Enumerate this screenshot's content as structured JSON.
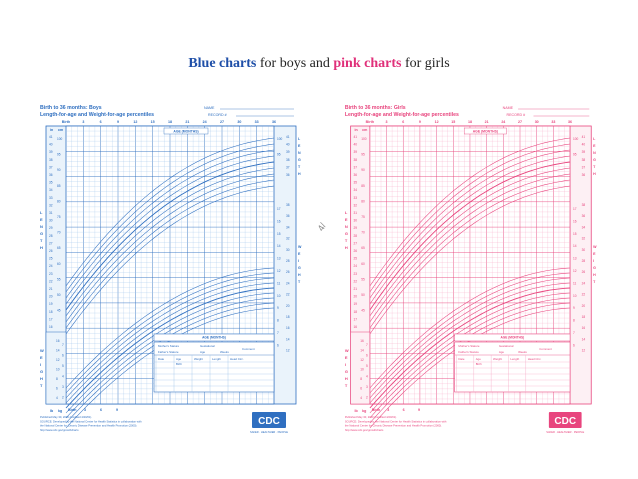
{
  "caption": {
    "blue_label": "Blue charts",
    "middle_text": " for boys and ",
    "pink_label": "pink charts",
    "end_text": " for girls"
  },
  "separator_glyph": "4/",
  "charts": [
    {
      "id": "boys",
      "color": "#2f6fc0",
      "light": "#9cc3ea",
      "paper": "#eaf3fb",
      "title": "Birth to 36 months: Boys",
      "subtitle": "Length-for-age and Weight-for-age percentiles",
      "name_label": "NAME",
      "record_label": "RECORD #",
      "age_top_label": "AGE (MONTHS)",
      "age_bottom_label": "AGE (MONTHS)",
      "age_ticks": [
        "Birth",
        "3",
        "6",
        "9",
        "12",
        "15",
        "18",
        "21",
        "24",
        "27",
        "30",
        "33",
        "36"
      ],
      "age_ticks_bottom": [
        "Birth",
        "3",
        "6",
        "9"
      ],
      "length_letters": [
        "L",
        "E",
        "N",
        "G",
        "T",
        "H"
      ],
      "weight_letters": [
        "W",
        "E",
        "I",
        "G",
        "H",
        "T"
      ],
      "in_label": "in",
      "cm_label": "cm",
      "lb_label": "lb",
      "kg_label": "kg",
      "length_in_ticks": [
        "41",
        "40",
        "39",
        "38",
        "37",
        "36",
        "35",
        "34",
        "33",
        "32",
        "31",
        "30",
        "29",
        "28",
        "27",
        "26",
        "25",
        "24",
        "23",
        "22",
        "21",
        "20",
        "19",
        "18",
        "17",
        "16",
        "15"
      ],
      "length_cm_ticks": [
        "100",
        "95",
        "90",
        "85",
        "80",
        "75",
        "70",
        "65",
        "60",
        "55",
        "50",
        "45"
      ],
      "weight_lb_ticks": [
        "16",
        "14",
        "12",
        "10",
        "8",
        "6",
        "4"
      ],
      "weight_kg_ticks": [
        "7",
        "6",
        "5",
        "4",
        "3",
        "2"
      ],
      "right_weight_kg_ticks": [
        "17",
        "16",
        "15",
        "14",
        "13",
        "12",
        "11",
        "10",
        "9",
        "8",
        "7",
        "6"
      ],
      "right_weight_lb_ticks": [
        "38",
        "36",
        "34",
        "32",
        "30",
        "28",
        "26",
        "24",
        "22",
        "20",
        "18",
        "16",
        "14",
        "12"
      ],
      "right_length_in_ticks": [
        "41",
        "40",
        "39",
        "38",
        "37",
        "36"
      ],
      "right_length_cm_ticks": [
        "100",
        "95"
      ],
      "table_headers": [
        "Mother's Stature",
        "Gestational",
        "Father's Stature",
        "Age",
        "Weeks",
        "Comment"
      ],
      "table_cols": [
        "Date",
        "Age",
        "Weight",
        "Length",
        "Head Circ."
      ],
      "table_birth": "Birth",
      "footer": [
        "Published May 30, 2000 (modified 4/20/01).",
        "SOURCE: Developed by the National Center for Health Statistics in collaboration with",
        "the National Center for Chronic Disease Prevention and Health Promotion (2000).",
        "http://www.cdc.gov/growthcharts"
      ],
      "logo_text": "CDC",
      "logo_sub": "SAFER · HEALTHIER · PEOPLE"
    },
    {
      "id": "girls",
      "color": "#e8457e",
      "light": "#f6a9c6",
      "paper": "#fdf0f4",
      "title": "Birth to 36 months: Girls",
      "subtitle": "Length-for-age and Weight-for-age percentiles",
      "name_label": "NAME",
      "record_label": "RECORD #",
      "age_top_label": "AGE (MONTHS)",
      "age_bottom_label": "AGE (MONTHS)",
      "age_ticks": [
        "Birth",
        "3",
        "6",
        "9",
        "12",
        "15",
        "18",
        "21",
        "24",
        "27",
        "30",
        "33",
        "36"
      ],
      "age_ticks_bottom": [
        "Birth",
        "3",
        "6",
        "9"
      ],
      "length_letters": [
        "L",
        "E",
        "N",
        "G",
        "T",
        "H"
      ],
      "weight_letters": [
        "W",
        "E",
        "I",
        "G",
        "H",
        "T"
      ],
      "in_label": "in",
      "cm_label": "cm",
      "lb_label": "lb",
      "kg_label": "kg",
      "length_in_ticks": [
        "41",
        "40",
        "39",
        "38",
        "37",
        "36",
        "35",
        "34",
        "33",
        "32",
        "31",
        "30",
        "29",
        "28",
        "27",
        "26",
        "25",
        "24",
        "23",
        "22",
        "21",
        "20",
        "19",
        "18",
        "17",
        "16",
        "15"
      ],
      "length_cm_ticks": [
        "100",
        "95",
        "90",
        "85",
        "80",
        "75",
        "70",
        "65",
        "60",
        "55",
        "50",
        "45"
      ],
      "weight_lb_ticks": [
        "16",
        "14",
        "12",
        "10",
        "8",
        "6",
        "4"
      ],
      "weight_kg_ticks": [
        "7",
        "6",
        "5",
        "4",
        "3",
        "2"
      ],
      "right_weight_kg_ticks": [
        "17",
        "16",
        "15",
        "14",
        "13",
        "12",
        "11",
        "10",
        "9",
        "8",
        "7",
        "6"
      ],
      "right_weight_lb_ticks": [
        "38",
        "36",
        "34",
        "32",
        "30",
        "28",
        "26",
        "24",
        "22",
        "20",
        "18",
        "16",
        "14",
        "12"
      ],
      "right_length_in_ticks": [
        "41",
        "40",
        "39",
        "38",
        "37",
        "36"
      ],
      "right_length_cm_ticks": [
        "100",
        "95"
      ],
      "table_headers": [
        "Mother's Stature",
        "Gestational",
        "Father's Stature",
        "Age",
        "Weeks",
        "Comment"
      ],
      "table_cols": [
        "Date",
        "Age",
        "Weight",
        "Length",
        "Head Circ."
      ],
      "table_birth": "Birth",
      "footer": [
        "Published May 30, 2000 (modified 4/20/01).",
        "SOURCE: Developed by the National Center for Health Statistics in collaboration with",
        "the National Center for Chronic Disease Prevention and Health Promotion (2000).",
        "http://www.cdc.gov/growthcharts"
      ],
      "logo_text": "CDC",
      "logo_sub": "SAFER · HEALTHIER · PEOPLE"
    }
  ]
}
